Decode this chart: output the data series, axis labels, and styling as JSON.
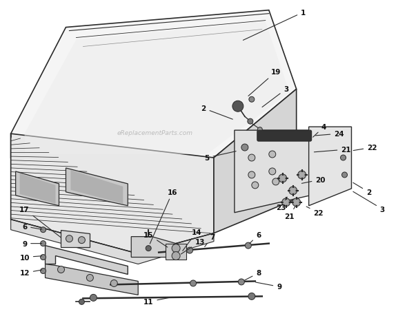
{
  "bg_color": "#ffffff",
  "line_color": "#2a2a2a",
  "label_color": "#111111",
  "watermark": "eReplacementParts.com",
  "fig_w": 5.9,
  "fig_h": 4.6,
  "dpi": 100
}
